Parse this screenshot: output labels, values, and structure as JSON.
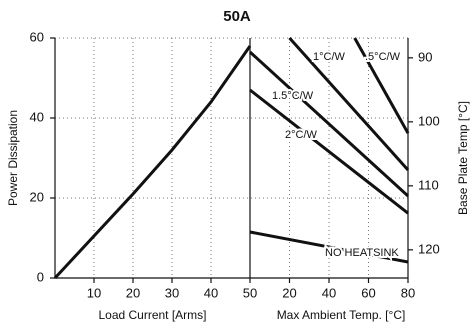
{
  "chart_data": {
    "type": "line",
    "title": "50A",
    "ylabel": "Power Dissipation",
    "ylim": [
      0,
      60
    ],
    "yticks": [
      0,
      20,
      40,
      60
    ],
    "y2label": "Base Plate Temp [°C]",
    "y2lim": [
      124.4,
      86.9
    ],
    "y2ticks": [
      90,
      100,
      110,
      120
    ],
    "grid": true,
    "color": "#111111",
    "panels": [
      {
        "xlabel": "Load Current  [Arms]",
        "xlim": [
          0,
          50
        ],
        "xticks": [
          10,
          20,
          30,
          40,
          50
        ],
        "series": [
          {
            "x": [
              0,
              10,
              20,
              30,
              40,
              50
            ],
            "values": [
              0,
              10.5,
              21,
              32,
              44,
              58
            ]
          }
        ]
      },
      {
        "xlabel": "Max Ambient Temp. [°C]",
        "xlim": [
          0,
          80
        ],
        "xticks": [
          20,
          40,
          60,
          80
        ],
        "series": [
          {
            "name": "1°C/W",
            "x": [
              20,
              80
            ],
            "values": [
              60,
              27
            ]
          },
          {
            "name": ".5°C/W",
            "x": [
              53,
              80
            ],
            "values": [
              60,
              36.2
            ]
          },
          {
            "name": "1.5°C/W",
            "x": [
              0,
              80
            ],
            "values": [
              56.5,
              20.5
            ]
          },
          {
            "name": "2°C/W",
            "x": [
              0,
              80
            ],
            "values": [
              47,
              16.2
            ]
          },
          {
            "name": "NO HEATSINK",
            "x": [
              0,
              80
            ],
            "values": [
              11.5,
              4
            ]
          }
        ]
      }
    ]
  }
}
